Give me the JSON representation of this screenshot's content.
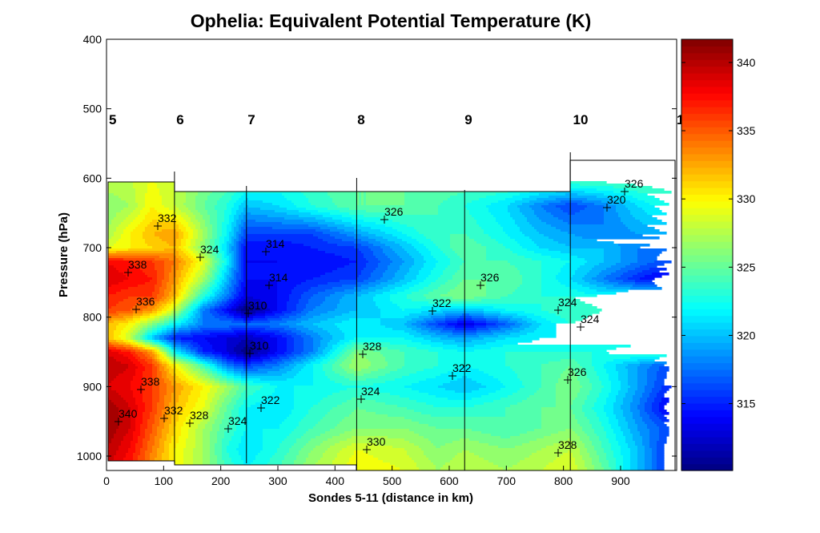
{
  "chart_data": {
    "type": "heatmap",
    "subtype": "filled-contour",
    "title": "Ophelia: Equivalent Potential Temperature (K)",
    "xlabel": "Sondes 5-11 (distance in km)",
    "ylabel": "Pressure (hPa)",
    "xlim": [
      0,
      987
    ],
    "ylim": [
      1020,
      400
    ],
    "x_ticks": [
      "0",
      "100",
      "200",
      "300",
      "400",
      "500",
      "600",
      "700",
      "800",
      "900"
    ],
    "y_ticks": [
      "400",
      "500",
      "600",
      "700",
      "800",
      "900",
      "1000"
    ],
    "colorbar": {
      "range": [
        310.1,
        341.7
      ],
      "ticks": [
        "315",
        "320",
        "325",
        "330",
        "335",
        "340"
      ],
      "colormap": "jet"
    },
    "contour_interval_K": 1,
    "sondes": [
      {
        "label": "5",
        "km": 0
      },
      {
        "label": "6",
        "km": 119
      },
      {
        "label": "7",
        "km": 245
      },
      {
        "label": "8",
        "km": 438
      },
      {
        "label": "9",
        "km": 627
      },
      {
        "label": "10",
        "km": 812
      },
      {
        "label": "1",
        "km": 996
      }
    ],
    "grid_x_km": [
      0,
      40,
      80,
      119,
      170,
      210,
      245,
      300,
      360,
      438,
      520,
      580,
      627,
      700,
      760,
      812,
      870,
      930,
      987
    ],
    "grid_p_hPa": [
      600,
      640,
      680,
      700,
      720,
      745,
      770,
      790,
      810,
      830,
      850,
      870,
      900,
      930,
      960,
      990,
      1020
    ],
    "theta_e_K": [
      [
        328,
        328,
        329,
        328,
        326,
        325,
        324,
        323,
        324,
        325,
        325,
        325,
        325,
        325,
        325,
        325,
        325,
        325,
        325
      ],
      [
        326,
        327,
        330,
        328,
        325,
        323,
        320,
        321,
        323,
        325,
        325,
        324,
        323,
        321,
        318,
        316,
        318,
        321,
        323
      ],
      [
        327,
        330,
        332,
        333,
        327,
        322,
        316,
        316,
        316,
        319,
        322,
        324,
        324,
        322,
        320,
        319,
        318,
        319,
        320
      ],
      [
        329,
        330,
        331,
        332,
        326,
        321,
        314,
        314,
        315,
        316,
        320,
        323,
        325,
        323,
        321,
        320,
        320,
        318,
        317
      ],
      [
        338,
        337,
        336,
        334,
        329,
        322,
        314,
        314,
        314,
        315,
        319,
        322,
        324,
        324,
        323,
        322,
        320,
        318,
        316
      ],
      [
        339,
        338,
        337,
        333,
        327,
        320,
        314,
        314,
        315,
        316,
        320,
        323,
        325,
        325,
        323,
        321,
        318,
        315,
        313
      ],
      [
        337,
        336,
        336,
        332,
        323,
        318,
        313,
        314,
        317,
        320,
        323,
        325,
        326,
        324,
        323,
        323,
        322,
        322,
        322
      ],
      [
        336,
        335,
        333,
        328,
        318,
        314,
        310,
        314,
        318,
        320,
        322,
        321,
        320,
        322,
        323,
        324,
        323,
        323,
        323
      ],
      [
        332,
        330,
        326,
        322,
        318,
        318,
        317,
        318,
        320,
        322,
        320,
        316,
        313,
        317,
        321,
        323,
        322,
        322,
        322
      ],
      [
        332,
        328,
        320,
        315,
        314,
        313,
        312,
        314,
        318,
        322,
        322,
        320,
        319,
        321,
        322,
        322,
        322,
        322,
        322
      ],
      [
        339,
        337,
        333,
        322,
        315,
        313,
        310,
        314,
        318,
        326,
        324,
        323,
        322,
        323,
        323,
        323,
        323,
        324,
        324
      ],
      [
        340,
        339,
        336,
        330,
        324,
        318,
        316,
        318,
        322,
        327,
        324,
        323,
        322,
        323,
        324,
        325,
        322,
        319,
        316
      ],
      [
        339,
        338,
        336,
        333,
        330,
        327,
        324,
        322,
        322,
        323,
        322,
        321,
        320,
        322,
        324,
        326,
        323,
        319,
        315
      ],
      [
        341,
        339,
        336,
        332,
        329,
        325,
        322,
        321,
        323,
        325,
        324,
        323,
        323,
        324,
        325,
        325,
        322,
        318,
        313
      ],
      [
        341,
        339,
        335,
        331,
        327,
        324,
        322,
        322,
        324,
        326,
        326,
        325,
        325,
        324,
        325,
        326,
        323,
        319,
        316
      ],
      [
        340,
        338,
        334,
        330,
        327,
        323,
        321,
        323,
        326,
        329,
        328,
        326,
        327,
        326,
        327,
        328,
        324,
        320,
        315
      ],
      [
        339,
        337,
        333,
        330,
        327,
        324,
        322,
        324,
        327,
        330,
        329,
        327,
        328,
        327,
        328,
        329,
        325,
        320,
        315
      ]
    ],
    "contour_labels": [
      "332",
      "324",
      "314",
      "314",
      "338",
      "336",
      "310",
      "310",
      "338",
      "340",
      "332",
      "328",
      "324",
      "322",
      "326",
      "328",
      "324",
      "330",
      "326",
      "322",
      "322",
      "324",
      "324",
      "326",
      "328",
      "326",
      "320"
    ]
  }
}
